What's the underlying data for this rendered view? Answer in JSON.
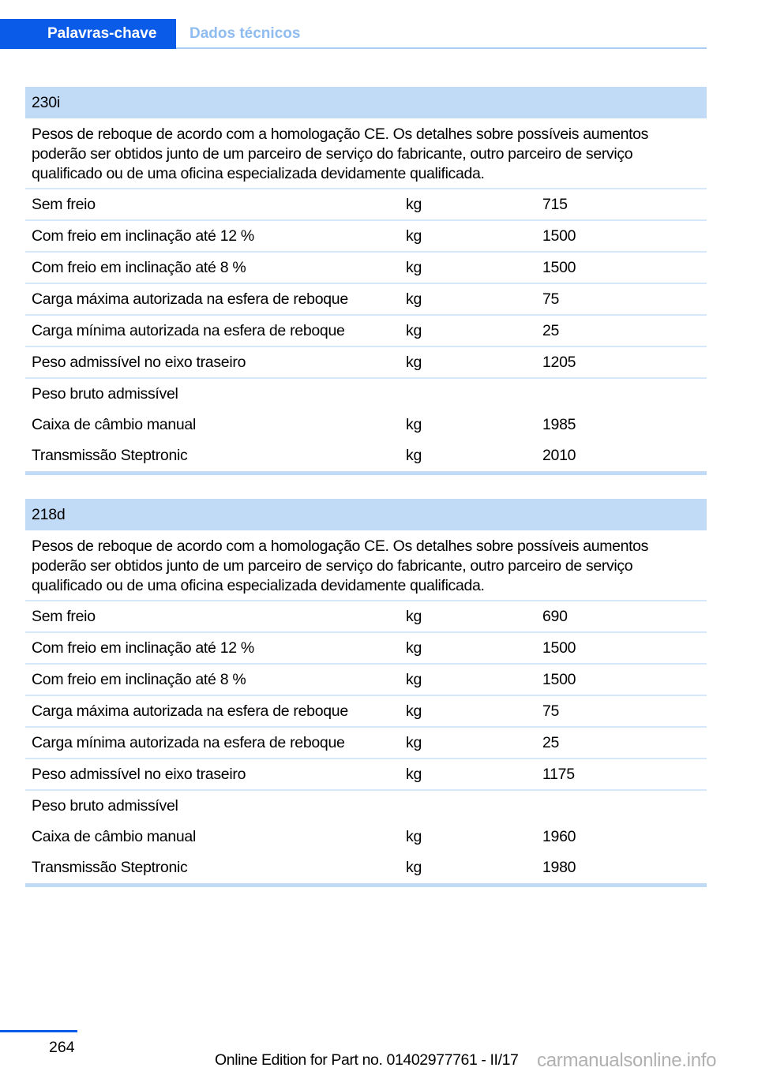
{
  "tabs": [
    {
      "label": "Palavras-chave",
      "active": true
    },
    {
      "label": "Dados técnicos",
      "active": false
    }
  ],
  "colors": {
    "accent": "#0a5ce8",
    "header_band": "#c1daf6",
    "inactive_tab": "#8fbcf0"
  },
  "sections": [
    {
      "title": "230i",
      "description": "Pesos de reboque de acordo com a homologação CE. Os detalhes sobre possíveis aumentos poderão ser obtidos junto de um parceiro de serviço do fabricante, outro parceiro de serviço qualificado ou de uma oficina especializada devidamente qualificada.",
      "rows": [
        {
          "label": "Sem freio",
          "unit": "kg",
          "value": "715"
        },
        {
          "label": "Com freio em inclinação até 12 %",
          "unit": "kg",
          "value": "1500"
        },
        {
          "label": "Com freio em inclinação até 8 %",
          "unit": "kg",
          "value": "1500"
        },
        {
          "label": "Carga máxima autorizada na esfera de reboque",
          "unit": "kg",
          "value": "75"
        },
        {
          "label": "Carga mínima autorizada na esfera de reboque",
          "unit": "kg",
          "value": "25"
        },
        {
          "label": "Peso admissível no eixo traseiro",
          "unit": "kg",
          "value": "1205"
        }
      ],
      "gross": {
        "label": "Peso bruto admissível",
        "rows": [
          {
            "label": "Caixa de câmbio manual",
            "unit": "kg",
            "value": "1985"
          },
          {
            "label": "Transmissão Steptronic",
            "unit": "kg",
            "value": "2010"
          }
        ]
      }
    },
    {
      "title": "218d",
      "description": "Pesos de reboque de acordo com a homologação CE. Os detalhes sobre possíveis aumentos poderão ser obtidos junto de um parceiro de serviço do fabricante, outro parceiro de serviço qualificado ou de uma oficina especializada devidamente qualificada.",
      "rows": [
        {
          "label": "Sem freio",
          "unit": "kg",
          "value": "690"
        },
        {
          "label": "Com freio em inclinação até 12 %",
          "unit": "kg",
          "value": "1500"
        },
        {
          "label": "Com freio em inclinação até 8 %",
          "unit": "kg",
          "value": "1500"
        },
        {
          "label": "Carga máxima autorizada na esfera de reboque",
          "unit": "kg",
          "value": "75"
        },
        {
          "label": "Carga mínima autorizada na esfera de reboque",
          "unit": "kg",
          "value": "25"
        },
        {
          "label": "Peso admissível no eixo traseiro",
          "unit": "kg",
          "value": "1175"
        }
      ],
      "gross": {
        "label": "Peso bruto admissível",
        "rows": [
          {
            "label": "Caixa de câmbio manual",
            "unit": "kg",
            "value": "1960"
          },
          {
            "label": "Transmissão Steptronic",
            "unit": "kg",
            "value": "1980"
          }
        ]
      }
    }
  ],
  "footer": {
    "page_number": "264",
    "edition": "Online Edition for Part no. 01402977761 - II/17",
    "watermark": "carmanualsonline.info"
  }
}
